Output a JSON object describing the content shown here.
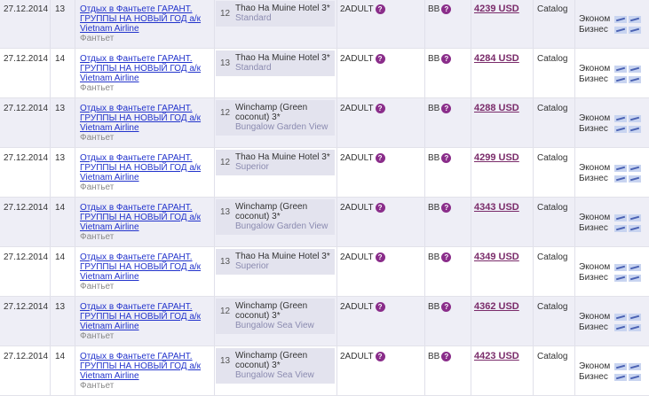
{
  "tour_name": "Отдых в Фантьете ГАРАНТ. ГРУППЫ НА НОВЫЙ ГОД а/к Vietnam Airline",
  "city": "Фантьет",
  "flight_classes": [
    "Эконом",
    "Бизнес"
  ],
  "colors": {
    "price": "#7a2b6a",
    "link": "#2233cc",
    "info_icon": "#8a2d8a",
    "row_shade": "#eeeef6"
  },
  "rows": [
    {
      "date": "27.12.2014",
      "nights": "13",
      "hotel_nights": "12",
      "hotel": "Thao Ha Muine Hotel 3*",
      "room_type": "Standard",
      "accommodation": "2ADULT",
      "meal": "BB",
      "price": "4239 USD",
      "source": "Catalog"
    },
    {
      "date": "27.12.2014",
      "nights": "14",
      "hotel_nights": "13",
      "hotel": "Thao Ha Muine Hotel 3*",
      "room_type": "Standard",
      "accommodation": "2ADULT",
      "meal": "BB",
      "price": "4284 USD",
      "source": "Catalog"
    },
    {
      "date": "27.12.2014",
      "nights": "13",
      "hotel_nights": "12",
      "hotel": "Winchamp (Green coconut) 3*",
      "room_type": "Bungalow Garden View",
      "accommodation": "2ADULT",
      "meal": "BB",
      "price": "4288 USD",
      "source": "Catalog"
    },
    {
      "date": "27.12.2014",
      "nights": "13",
      "hotel_nights": "12",
      "hotel": "Thao Ha Muine Hotel 3*",
      "room_type": "Superior",
      "accommodation": "2ADULT",
      "meal": "BB",
      "price": "4299 USD",
      "source": "Catalog"
    },
    {
      "date": "27.12.2014",
      "nights": "14",
      "hotel_nights": "13",
      "hotel": "Winchamp (Green coconut) 3*",
      "room_type": "Bungalow Garden View",
      "accommodation": "2ADULT",
      "meal": "BB",
      "price": "4343 USD",
      "source": "Catalog"
    },
    {
      "date": "27.12.2014",
      "nights": "14",
      "hotel_nights": "13",
      "hotel": "Thao Ha Muine Hotel 3*",
      "room_type": "Superior",
      "accommodation": "2ADULT",
      "meal": "BB",
      "price": "4349 USD",
      "source": "Catalog"
    },
    {
      "date": "27.12.2014",
      "nights": "13",
      "hotel_nights": "12",
      "hotel": "Winchamp (Green coconut) 3*",
      "room_type": "Bungalow Sea View",
      "accommodation": "2ADULT",
      "meal": "BB",
      "price": "4362 USD",
      "source": "Catalog"
    },
    {
      "date": "27.12.2014",
      "nights": "14",
      "hotel_nights": "13",
      "hotel": "Winchamp (Green coconut) 3*",
      "room_type": "Bungalow Sea View",
      "accommodation": "2ADULT",
      "meal": "BB",
      "price": "4423 USD",
      "source": "Catalog"
    }
  ]
}
